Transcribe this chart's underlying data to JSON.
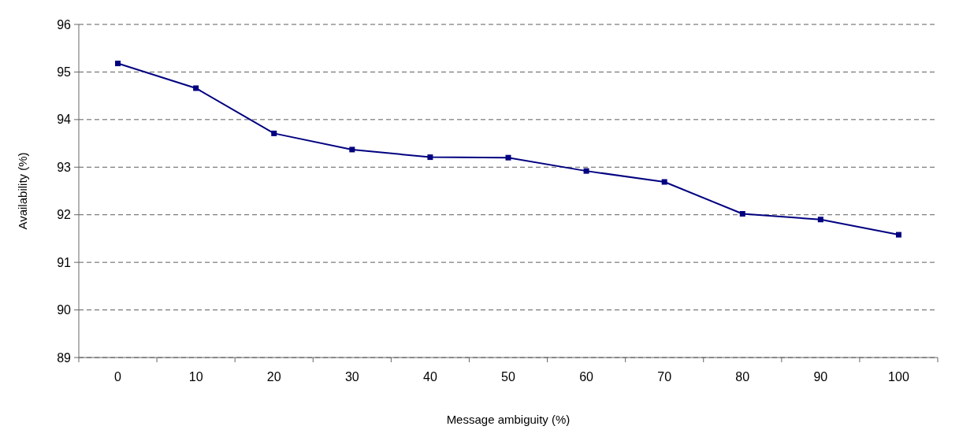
{
  "chart_data": {
    "type": "line",
    "xlabel": "Message ambiguity (%)",
    "ylabel": "Availability (%)",
    "categories": [
      "0",
      "10",
      "20",
      "30",
      "40",
      "50",
      "60",
      "70",
      "80",
      "90",
      "100"
    ],
    "series": [
      {
        "color": "#000080",
        "values": [
          95.18,
          94.66,
          93.71,
          93.37,
          93.21,
          93.2,
          92.92,
          92.69,
          92.02,
          91.9,
          91.58
        ]
      }
    ],
    "ylim": [
      89,
      96
    ],
    "yticks": [
      89,
      90,
      91,
      92,
      93,
      94,
      95,
      96
    ],
    "grid": "y",
    "marker": "square",
    "line_style": "solid"
  }
}
